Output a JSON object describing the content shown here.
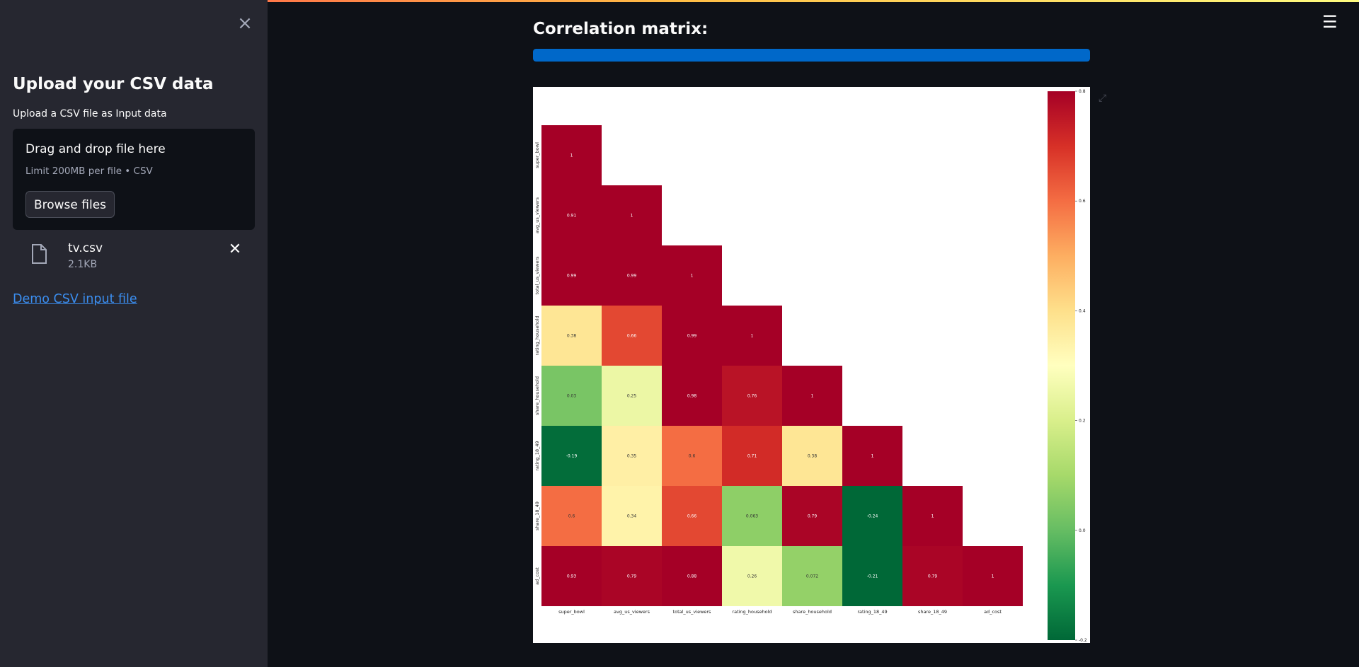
{
  "sidebar": {
    "title": "Upload your CSV data",
    "subtitle": "Upload a CSV file as Input data",
    "dropzone": {
      "title": "Drag and drop file here",
      "limit": "Limit 200MB per file • CSV",
      "browse_label": "Browse files"
    },
    "file": {
      "name": "tv.csv",
      "size": "2.1KB"
    },
    "demo_link": "Demo CSV input file",
    "close_icon": "close-icon"
  },
  "main": {
    "title": "Correlation matrix:",
    "progress": 1.0,
    "menu_icon": "hamburger-icon"
  },
  "colors": {
    "background": "#0e1117",
    "sidebar": "#262730",
    "progress": "#0068c9",
    "link": "#3b8ef0"
  },
  "chart_data": {
    "type": "heatmap",
    "colormap": "RdYlGn_r",
    "vmin": -0.2,
    "vmax": 0.8,
    "variables": [
      "super_bowl",
      "avg_us_viewers",
      "total_us_viewers",
      "rating_household",
      "share_household",
      "rating_18_49",
      "share_18_49",
      "ad_cost"
    ],
    "matrix_lower_triangle": [
      [
        1
      ],
      [
        0.91,
        1
      ],
      [
        0.99,
        0.99,
        1
      ],
      [
        0.38,
        0.66,
        0.99,
        1
      ],
      [
        0.03,
        0.25,
        0.98,
        0.76,
        1
      ],
      [
        -0.19,
        0.35,
        0.6,
        0.71,
        0.38,
        1
      ],
      [
        0.6,
        0.34,
        0.66,
        0.063,
        0.79,
        -0.24,
        1
      ],
      [
        0.93,
        0.79,
        0.88,
        0.26,
        0.072,
        -0.21,
        0.79,
        1
      ]
    ],
    "labels": [
      [
        "1"
      ],
      [
        "0.91",
        "1"
      ],
      [
        "0.99",
        "0.99",
        "1"
      ],
      [
        "0.38",
        "0.66",
        "0.99",
        "1"
      ],
      [
        "0.03",
        "0.25",
        "0.98",
        "0.76",
        "1"
      ],
      [
        "-0.19",
        "0.35",
        "0.6",
        "0.71",
        "0.38",
        "1"
      ],
      [
        "0.6",
        "0.34",
        "0.66",
        "0.063",
        "0.79",
        "-0.24",
        "1"
      ],
      [
        "0.93",
        "0.79",
        "0.88",
        "0.26",
        "0.072",
        "-0.21",
        "0.79",
        "1"
      ]
    ],
    "colorbar_ticks": [
      {
        "value": 0.8,
        "label": "0.8"
      },
      {
        "value": 0.6,
        "label": "0.6"
      },
      {
        "value": 0.4,
        "label": "0.4"
      },
      {
        "value": 0.2,
        "label": "0.2"
      },
      {
        "value": 0.0,
        "label": "0.0"
      },
      {
        "value": -0.2,
        "label": "-0.2"
      }
    ]
  }
}
